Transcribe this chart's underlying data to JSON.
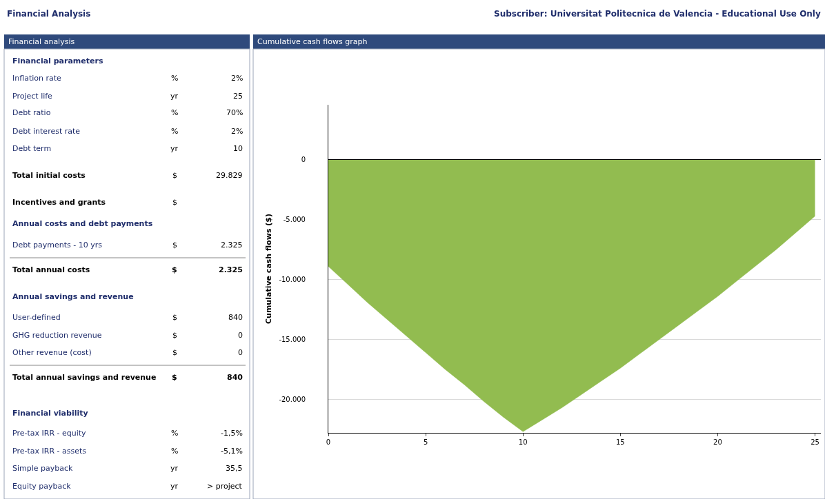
{
  "chart_data": [
    {
      "type": "other",
      "title": "Financial analysis",
      "annotations": [
        "Financial Analysis",
        "Subscriber: Universitat Politecnica de Valencia - Educational Use Only"
      ],
      "cell_labels": [
        [
          "Financial parameters",
          null,
          null
        ],
        [
          "Inflation rate",
          "%",
          "2%"
        ],
        [
          "Project life",
          "yr",
          "25"
        ],
        [
          "Debt ratio",
          "%",
          "70%"
        ],
        [
          "Debt interest rate",
          "%",
          "2%"
        ],
        [
          "Debt term",
          "yr",
          "10"
        ],
        [
          "Total initial costs",
          "$",
          "29.829"
        ],
        [
          "Incentives and grants",
          "$",
          null
        ],
        [
          "Annual costs and debt payments",
          null,
          null
        ],
        [
          "Debt payments - 10 yrs",
          "$",
          "2.325"
        ],
        [
          "Total annual costs",
          "$",
          "2.325"
        ],
        [
          "Annual savings and revenue",
          null,
          null
        ],
        [
          "User-defined",
          "$",
          "840"
        ],
        [
          "GHG reduction revenue",
          "$",
          "0"
        ],
        [
          "Other revenue (cost)",
          "$",
          "0"
        ],
        [
          "Total annual savings and revenue",
          "$",
          "840"
        ],
        [
          "Financial viability",
          null,
          null
        ],
        [
          "Pre-tax IRR - equity",
          "%",
          "-1,5%"
        ],
        [
          "Pre-tax IRR - assets",
          "%",
          "-5,1%"
        ],
        [
          "Simple payback",
          "yr",
          "35,5"
        ],
        [
          "Equity payback",
          "yr",
          "> project"
        ]
      ]
    },
    {
      "type": "area",
      "title": "Cumulative cash flows graph",
      "ylabel": "Cumulative cash flows ($)",
      "x": [
        0,
        1,
        2,
        3,
        4,
        5,
        6,
        7,
        8,
        9,
        10,
        11,
        12,
        13,
        14,
        15,
        16,
        17,
        18,
        19,
        20,
        21,
        22,
        23,
        24,
        25
      ],
      "values": [
        -8900,
        -10400,
        -11900,
        -13300,
        -14700,
        -16100,
        -17500,
        -18800,
        -20200,
        -21500,
        -22700,
        -21700,
        -20700,
        -19600,
        -18500,
        -17400,
        -16200,
        -15000,
        -13800,
        -12600,
        -11400,
        -10100,
        -8800,
        -7500,
        -6100,
        -4700
      ],
      "color": "#92bc50",
      "xlim": [
        0,
        25.3
      ],
      "xticks": [
        0,
        5,
        10,
        15,
        20,
        25
      ],
      "ylim": [
        -22800,
        4600
      ],
      "yticks": [
        {
          "value": 0,
          "label": "0"
        },
        {
          "value": -5000,
          "label": "-5.000"
        },
        {
          "value": -10000,
          "label": "-10.000"
        },
        {
          "value": -15000,
          "label": "-15.000"
        },
        {
          "value": -20000,
          "label": "-20.000"
        }
      ],
      "grid": "y"
    }
  ]
}
